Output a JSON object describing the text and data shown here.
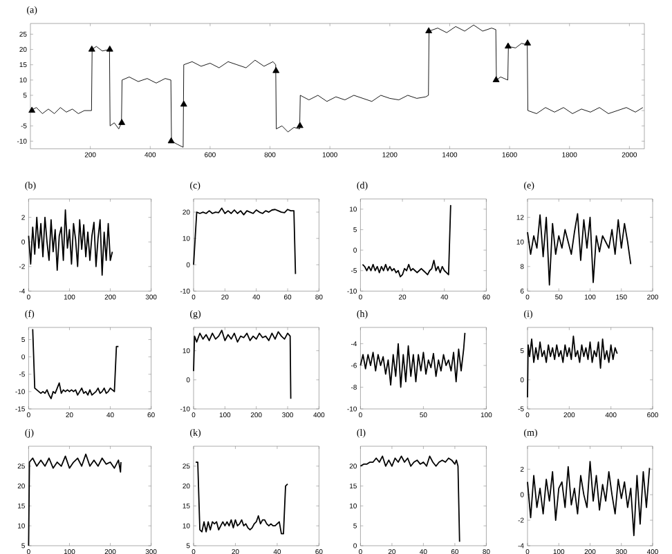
{
  "chart_data": [
    {
      "type": "line",
      "title": "(a)",
      "xlim": [
        0,
        2050
      ],
      "xticks": [
        200,
        400,
        600,
        800,
        1000,
        1200,
        1400,
        1600,
        1800,
        2000
      ],
      "ylim": [
        -12.5,
        28.5
      ],
      "yticks": [
        -10,
        -5,
        {
          "value": 0,
          "label": null
        },
        5,
        10,
        15,
        20,
        25
      ],
      "series": [
        {
          "type": "line",
          "color": "#000000",
          "x": [
            0,
            20,
            40,
            60,
            80,
            100,
            120,
            140,
            160,
            180,
            204,
            206,
            220,
            240,
            264,
            266,
            280,
            295,
            304,
            306,
            330,
            360,
            390,
            420,
            450,
            469,
            471,
            490,
            510,
            512,
            540,
            570,
            600,
            630,
            660,
            690,
            720,
            750,
            780,
            810,
            819,
            821,
            840,
            860,
            880,
            899,
            901,
            930,
            960,
            990,
            1020,
            1050,
            1080,
            1110,
            1140,
            1170,
            1200,
            1230,
            1260,
            1290,
            1320,
            1329,
            1331,
            1360,
            1390,
            1420,
            1450,
            1480,
            1510,
            1540,
            1554,
            1556,
            1570,
            1594,
            1596,
            1620,
            1640,
            1659,
            1661,
            1690,
            1720,
            1750,
            1780,
            1810,
            1840,
            1870,
            1900,
            1930,
            1960,
            1990,
            2020,
            2045
          ],
          "values": [
            0,
            1,
            -1,
            0.5,
            -1,
            1,
            -0.5,
            0.5,
            -1,
            0,
            0,
            20,
            21,
            19.5,
            20,
            -5,
            -4,
            -6,
            -4,
            10,
            11,
            9.5,
            10.5,
            9,
            10.5,
            10,
            -10,
            -11,
            -12,
            15,
            16,
            14.5,
            15.5,
            14,
            16,
            15,
            14,
            16.5,
            14.5,
            16,
            15,
            -6,
            -5,
            -7,
            -5.5,
            -6,
            5,
            3.5,
            5,
            3,
            4.5,
            3.5,
            5,
            4,
            3,
            5,
            4,
            3.5,
            5,
            4,
            4.5,
            5,
            26,
            27,
            25.5,
            27.5,
            26,
            28,
            26,
            27,
            26.5,
            10,
            11,
            10,
            21,
            20.5,
            22,
            21.5,
            0,
            -1,
            1,
            -0.5,
            1,
            -1,
            0.5,
            -0.5,
            1,
            -1,
            0,
            1,
            -0.5,
            1
          ]
        },
        {
          "type": "scatter",
          "color": "#000000",
          "marker": "triangle",
          "x": [
            5,
            205,
            265,
            305,
            470,
            512,
            820,
            900,
            1330,
            1555,
            1595,
            1660
          ],
          "values": [
            0,
            20,
            20,
            -4,
            -10,
            2,
            13,
            -5,
            26,
            10,
            21,
            22
          ]
        }
      ]
    },
    {
      "type": "line",
      "title": "(b)",
      "color": "#000000",
      "xlim": [
        0,
        300
      ],
      "xticks": [
        0,
        100,
        200,
        300
      ],
      "ylim": [
        -4,
        3.5
      ],
      "yticks": [
        -4,
        -2,
        0,
        2
      ],
      "x": [
        0,
        5,
        10,
        15,
        20,
        25,
        30,
        35,
        40,
        45,
        50,
        55,
        60,
        65,
        70,
        75,
        80,
        85,
        90,
        95,
        100,
        105,
        110,
        115,
        120,
        125,
        130,
        135,
        140,
        145,
        150,
        155,
        160,
        165,
        170,
        175,
        180,
        185,
        190,
        195,
        200,
        205
      ],
      "values": [
        0.5,
        -1.8,
        1.2,
        -1,
        2,
        -0.5,
        1.5,
        -1.2,
        2,
        0,
        -1.5,
        1.8,
        -0.8,
        1,
        -2.3,
        0.5,
        1.2,
        -1.5,
        2.6,
        -0.5,
        1,
        -1.8,
        1.5,
        0.2,
        -2,
        1.8,
        -0.6,
        1.4,
        -1.2,
        0.8,
        -1.5,
        0.5,
        1.6,
        -2,
        0.3,
        1.8,
        -2.7,
        0.8,
        -1.5,
        1.5,
        -1.5,
        -0.8
      ]
    },
    {
      "type": "line",
      "title": "(c)",
      "color": "#000000",
      "xlim": [
        0,
        80
      ],
      "xticks": [
        0,
        20,
        40,
        60,
        80
      ],
      "ylim": [
        -10,
        25
      ],
      "yticks": [
        -10,
        0,
        10,
        20
      ],
      "x": [
        0,
        2,
        4,
        6,
        8,
        10,
        12,
        14,
        16,
        18,
        20,
        22,
        24,
        26,
        28,
        30,
        32,
        34,
        36,
        38,
        40,
        42,
        44,
        46,
        48,
        50,
        52,
        54,
        56,
        58,
        60,
        62,
        64,
        65
      ],
      "values": [
        0,
        20,
        19.5,
        20,
        19.5,
        20.5,
        19.5,
        20,
        19.8,
        21.5,
        19.5,
        20.5,
        19.5,
        20.8,
        19.5,
        20.5,
        19,
        20.5,
        20,
        19.5,
        20.8,
        20,
        19.5,
        20.5,
        20,
        20.8,
        21,
        20.5,
        20,
        19.8,
        21,
        20.5,
        20.5,
        -3.5
      ]
    },
    {
      "type": "line",
      "title": "(d)",
      "color": "#000000",
      "xlim": [
        0,
        60
      ],
      "xticks": [
        0,
        20,
        40,
        60
      ],
      "ylim": [
        -10,
        12.5
      ],
      "yticks": [
        -10,
        -5,
        0,
        5,
        10
      ],
      "x": [
        1,
        2,
        3,
        4,
        5,
        6,
        7,
        8,
        9,
        10,
        11,
        12,
        13,
        14,
        15,
        16,
        17,
        18,
        19,
        20,
        21,
        22,
        23,
        24,
        25,
        26,
        27,
        28,
        29,
        30,
        31,
        32,
        33,
        34,
        35,
        36,
        37,
        38,
        39,
        40,
        41,
        42,
        43
      ],
      "values": [
        -3.5,
        -4,
        -5,
        -4,
        -5,
        -3.5,
        -5,
        -4,
        -5.5,
        -4,
        -5,
        -3.5,
        -5,
        -4,
        -5,
        -4.5,
        -5.5,
        -5,
        -6.5,
        -6,
        -4.5,
        -5,
        -3.5,
        -5,
        -4.5,
        -5,
        -5.5,
        -5,
        -4.5,
        -5,
        -5.5,
        -6,
        -5,
        -4.5,
        -2.5,
        -5,
        -4,
        -5.5,
        -4,
        -5,
        -5.5,
        -6,
        11
      ]
    },
    {
      "type": "line",
      "title": "(e)",
      "color": "#000000",
      "xlim": [
        0,
        200
      ],
      "xticks": [
        0,
        50,
        100,
        150,
        200
      ],
      "ylim": [
        6,
        13.5
      ],
      "yticks": [
        6,
        8,
        10,
        12
      ],
      "x": [
        0,
        5,
        10,
        15,
        20,
        25,
        30,
        35,
        40,
        45,
        50,
        55,
        60,
        65,
        70,
        75,
        80,
        85,
        90,
        95,
        100,
        105,
        110,
        115,
        120,
        125,
        130,
        135,
        140,
        145,
        150,
        155,
        160,
        165
      ],
      "values": [
        10.8,
        9,
        10.5,
        9.5,
        12.2,
        8.8,
        12,
        6.5,
        11.5,
        9,
        10.5,
        9.5,
        11,
        10,
        9,
        10.8,
        12.3,
        8.5,
        11.8,
        9.5,
        12,
        6.7,
        10.5,
        9.2,
        10.5,
        10,
        9.5,
        11,
        9,
        11.8,
        9.5,
        11.5,
        10,
        8.2
      ]
    },
    {
      "type": "line",
      "title": "(f)",
      "color": "#000000",
      "xlim": [
        0,
        60
      ],
      "xticks": [
        0,
        20,
        40,
        60
      ],
      "ylim": [
        -15,
        8.5
      ],
      "yticks": [
        -15,
        -10,
        -5,
        0,
        5
      ],
      "x": [
        2,
        3,
        4,
        5,
        6,
        7,
        8,
        9,
        10,
        11,
        12,
        13,
        14,
        15,
        16,
        17,
        18,
        19,
        20,
        21,
        22,
        23,
        24,
        25,
        26,
        27,
        28,
        29,
        30,
        31,
        32,
        33,
        34,
        35,
        36,
        37,
        38,
        39,
        40,
        41,
        42,
        43,
        44
      ],
      "values": [
        8,
        -9,
        -9.5,
        -10,
        -10.5,
        -10,
        -10.5,
        -9.5,
        -11,
        -12,
        -10,
        -10.5,
        -9,
        -7.5,
        -10.5,
        -9.5,
        -10,
        -9.5,
        -10,
        -9.5,
        -10,
        -9.5,
        -11,
        -10,
        -9,
        -10.5,
        -10,
        -11,
        -9.5,
        -11,
        -10.5,
        -10,
        -9,
        -10.5,
        -10,
        -9,
        -10.5,
        -10,
        -9,
        -9.5,
        -10,
        3,
        3
      ]
    },
    {
      "type": "line",
      "title": "(g)",
      "color": "#000000",
      "xlim": [
        0,
        400
      ],
      "xticks": [
        0,
        100,
        200,
        300,
        400
      ],
      "ylim": [
        -10,
        18
      ],
      "yticks": [
        -10,
        0,
        10
      ],
      "x": [
        0,
        3,
        10,
        20,
        30,
        40,
        50,
        60,
        70,
        80,
        90,
        100,
        110,
        120,
        130,
        140,
        150,
        160,
        170,
        180,
        190,
        200,
        210,
        220,
        230,
        240,
        250,
        260,
        270,
        280,
        290,
        300,
        308,
        310
      ],
      "values": [
        3,
        15,
        13,
        16,
        14,
        15.5,
        13.5,
        16,
        14,
        15,
        17,
        13.5,
        15.5,
        14,
        16,
        13,
        15,
        14.5,
        16,
        13.5,
        15,
        14,
        16,
        14.5,
        15,
        13.5,
        16,
        14,
        16.5,
        15,
        14,
        16,
        15,
        -6.5
      ]
    },
    {
      "type": "line",
      "title": "(h)",
      "color": "#000000",
      "xlim": [
        0,
        100
      ],
      "xticks": [
        0,
        50,
        100
      ],
      "ylim": [
        -10,
        -2.5
      ],
      "yticks": [
        -10,
        -8,
        -6,
        -4
      ],
      "x": [
        0,
        2,
        4,
        6,
        8,
        10,
        12,
        14,
        16,
        18,
        20,
        22,
        24,
        26,
        28,
        30,
        32,
        34,
        36,
        38,
        40,
        42,
        44,
        46,
        48,
        50,
        52,
        54,
        56,
        58,
        60,
        62,
        64,
        66,
        68,
        70,
        72,
        74,
        76,
        78,
        80,
        82,
        83
      ],
      "values": [
        -6,
        -5,
        -6.3,
        -5,
        -6,
        -4.8,
        -6.5,
        -5,
        -6,
        -5.2,
        -6.8,
        -5.5,
        -7.8,
        -5,
        -7,
        -4,
        -8,
        -5,
        -7.5,
        -4.2,
        -7,
        -5,
        -7.5,
        -5,
        -6.5,
        -4.8,
        -6.8,
        -5.5,
        -6.2,
        -4.9,
        -7,
        -5.5,
        -6.5,
        -5,
        -6,
        -5.5,
        -6.5,
        -4.8,
        -7.5,
        -4.5,
        -6.5,
        -4.5,
        -3
      ]
    },
    {
      "type": "line",
      "title": "(i)",
      "color": "#000000",
      "xlim": [
        0,
        600
      ],
      "xticks": [
        0,
        200,
        400,
        600
      ],
      "ylim": [
        -5,
        9
      ],
      "yticks": [
        -5,
        0,
        5
      ],
      "x": [
        0,
        3,
        10,
        20,
        30,
        40,
        50,
        60,
        70,
        80,
        90,
        100,
        110,
        120,
        130,
        140,
        150,
        160,
        170,
        180,
        190,
        200,
        210,
        220,
        230,
        240,
        250,
        260,
        270,
        280,
        290,
        300,
        310,
        320,
        330,
        340,
        350,
        360,
        370,
        380,
        390,
        400,
        410,
        420,
        430
      ],
      "values": [
        -3,
        6,
        4,
        7,
        3,
        5.5,
        3.5,
        6.5,
        4,
        5,
        3,
        6,
        4,
        5.5,
        3.5,
        6,
        4,
        5,
        3,
        6,
        4,
        5.5,
        3.5,
        7.5,
        4,
        5,
        3,
        6,
        4,
        5.5,
        3.5,
        6.5,
        3,
        5,
        4,
        6.5,
        2,
        7,
        3.5,
        5,
        3,
        6,
        3.5,
        5.5,
        4.5
      ]
    },
    {
      "type": "line",
      "title": "(j)",
      "color": "#000000",
      "xlim": [
        0,
        300
      ],
      "xticks": [
        0,
        100,
        200,
        300
      ],
      "ylim": [
        5,
        30
      ],
      "yticks": [
        5,
        10,
        15,
        20,
        25
      ],
      "x": [
        0,
        2,
        10,
        20,
        30,
        40,
        50,
        60,
        70,
        80,
        90,
        100,
        110,
        120,
        130,
        140,
        150,
        160,
        170,
        180,
        190,
        200,
        210,
        220,
        225,
        226
      ],
      "values": [
        5,
        26,
        27,
        25,
        26.5,
        25,
        27,
        24.5,
        26,
        25,
        27.5,
        24.5,
        26,
        27,
        25,
        28,
        25,
        26.5,
        25,
        27,
        25.5,
        26,
        24.5,
        26.5,
        23.5,
        26
      ]
    },
    {
      "type": "line",
      "title": "(k)",
      "color": "#000000",
      "xlim": [
        0,
        60
      ],
      "xticks": [
        0,
        20,
        40,
        60
      ],
      "ylim": [
        5,
        30
      ],
      "yticks": [
        5,
        10,
        15,
        20,
        25
      ],
      "x": [
        1,
        2,
        3,
        4,
        5,
        6,
        7,
        8,
        9,
        10,
        11,
        12,
        13,
        14,
        15,
        16,
        17,
        18,
        19,
        20,
        21,
        22,
        23,
        24,
        25,
        26,
        27,
        28,
        29,
        30,
        31,
        32,
        33,
        34,
        35,
        36,
        37,
        38,
        39,
        40,
        41,
        42,
        43,
        44,
        45
      ],
      "values": [
        26,
        26,
        9,
        8.5,
        11,
        8.5,
        11,
        9,
        11,
        10.5,
        11,
        9,
        10,
        11,
        10,
        11,
        10,
        11.5,
        9.5,
        11.5,
        10,
        10.5,
        11.5,
        10,
        10.5,
        9.5,
        9,
        9.5,
        10.5,
        11,
        12.5,
        10.5,
        11.5,
        11.5,
        10.5,
        10,
        10.5,
        10,
        10,
        10.5,
        11,
        8,
        8,
        20,
        20.5
      ]
    },
    {
      "type": "line",
      "title": "(l)",
      "color": "#000000",
      "xlim": [
        0,
        80
      ],
      "xticks": [
        0,
        20,
        40,
        60,
        80
      ],
      "ylim": [
        0,
        25
      ],
      "yticks": [
        0,
        5,
        10,
        15,
        20
      ],
      "x": [
        0,
        2,
        4,
        6,
        8,
        10,
        12,
        14,
        16,
        18,
        20,
        22,
        24,
        26,
        28,
        30,
        32,
        34,
        36,
        38,
        40,
        42,
        44,
        46,
        48,
        50,
        52,
        54,
        56,
        58,
        60,
        61,
        62,
        63
      ],
      "values": [
        20,
        20.5,
        20.5,
        21,
        21,
        22,
        21,
        22.5,
        20,
        21.5,
        20,
        22,
        21,
        22.5,
        21,
        22,
        20,
        21,
        21.5,
        20.5,
        21,
        20,
        22.5,
        21,
        20,
        21,
        21.5,
        21,
        22,
        21.5,
        20.5,
        21.5,
        20,
        1
      ]
    },
    {
      "type": "line",
      "title": "(m)",
      "color": "#000000",
      "xlim": [
        0,
        400
      ],
      "xticks": [
        0,
        100,
        200,
        300,
        400
      ],
      "ylim": [
        -4,
        3.8
      ],
      "yticks": [
        -4,
        -2,
        0,
        2
      ],
      "x": [
        0,
        10,
        20,
        30,
        40,
        50,
        60,
        70,
        80,
        90,
        100,
        110,
        120,
        130,
        140,
        150,
        160,
        170,
        180,
        190,
        200,
        210,
        220,
        230,
        240,
        250,
        260,
        270,
        280,
        290,
        300,
        310,
        320,
        330,
        340,
        350,
        360,
        370,
        380,
        390
      ],
      "values": [
        1,
        -1.8,
        1.5,
        -1,
        0.5,
        -1.5,
        1.2,
        -0.5,
        1.8,
        -2,
        0.5,
        1,
        -1,
        2.2,
        -0.8,
        0.5,
        -1.5,
        1.5,
        0,
        -1,
        2.6,
        -0.5,
        1.5,
        -1.2,
        0.8,
        -0.5,
        1.8,
        0,
        -1.5,
        1.2,
        -0.3,
        1,
        -1,
        0.5,
        -3.2,
        1.5,
        -2.3,
        1.8,
        -1,
        2.1
      ]
    }
  ]
}
